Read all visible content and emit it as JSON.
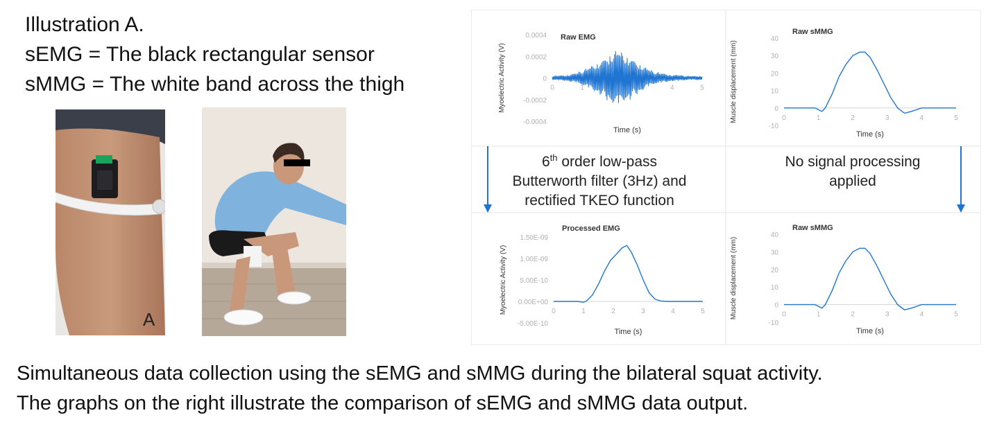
{
  "header": {
    "line1": "Illustration A.",
    "line2": "sEMG = The black rectangular sensor",
    "line3": "sMMG = The white band across the thigh"
  },
  "photos": {
    "left_label": "A",
    "left_description_icon": "thigh-sensor-photo",
    "right_description_icon": "person-squat-photo"
  },
  "flow": {
    "left_text_line1_prefix": "6",
    "left_text_line1_sup": "th",
    "left_text_line1_rest": " order low-pass",
    "left_text_line2": "Butterworth filter (3Hz) and",
    "left_text_line3": "rectified TKEO function",
    "right_text_line1": "No signal processing",
    "right_text_line2": "applied"
  },
  "chart_data": [
    {
      "type": "line",
      "title": "Raw EMG",
      "xlabel": "Time (s)",
      "ylabel": "Myoelectric Activity (V)",
      "xlim": [
        0,
        5
      ],
      "ylim": [
        -0.0004,
        0.0004
      ],
      "xticks": [
        "0",
        "1",
        "2",
        "3",
        "4",
        "5"
      ],
      "yticks": [
        "0.0004",
        "0.0002",
        "0",
        "-0.0002",
        "-0.0004"
      ],
      "series": [
        {
          "color": "#1f75d1",
          "x": [
            0,
            0.5,
            0.8,
            1.0,
            1.2,
            1.4,
            1.6,
            1.8,
            2.0,
            2.2,
            2.4,
            2.6,
            2.8,
            3.0,
            3.2,
            3.4,
            3.6,
            3.8,
            4.0,
            4.2,
            4.5,
            5.0
          ],
          "y": [
            2e-05,
            3e-05,
            5e-05,
            7e-05,
            0.0001,
            0.00013,
            0.00016,
            0.0002,
            0.00025,
            0.00027,
            0.00023,
            0.0002,
            0.00016,
            0.00012,
            9e-05,
            6e-05,
            5e-05,
            4e-05,
            3e-05,
            3e-05,
            2e-05,
            2e-05
          ]
        }
      ]
    },
    {
      "type": "line",
      "title": "Raw sMMG",
      "xlabel": "Time (s)",
      "ylabel": "Muscle displacement (mm)",
      "xlim": [
        0,
        5
      ],
      "ylim": [
        -10,
        40
      ],
      "xticks": [
        "0",
        "1",
        "2",
        "3",
        "4",
        "5"
      ],
      "yticks": [
        "40",
        "30",
        "20",
        "10",
        "0",
        "-10"
      ],
      "series": [
        {
          "color": "#1f75d1",
          "x": [
            0,
            0.5,
            0.9,
            1.0,
            1.1,
            1.2,
            1.4,
            1.6,
            1.8,
            2.0,
            2.2,
            2.35,
            2.5,
            2.7,
            2.9,
            3.1,
            3.3,
            3.5,
            3.7,
            4.0,
            4.5,
            5.0
          ],
          "y": [
            0,
            0,
            0,
            -1,
            -2,
            0,
            8,
            18,
            25,
            30,
            32,
            32,
            29,
            22,
            14,
            6,
            0,
            -3,
            -2,
            0,
            0,
            0
          ]
        }
      ]
    },
    {
      "type": "line",
      "title": "Processed EMG",
      "xlabel": "Time (s)",
      "ylabel": "Myoelectric Activity (V)",
      "xlim": [
        0,
        5
      ],
      "ylim": [
        -5e-10,
        1.5e-09
      ],
      "xticks": [
        "0",
        "1",
        "2",
        "3",
        "4",
        "5"
      ],
      "yticks": [
        "1.50E-09",
        "1.00E-09",
        "5.00E-10",
        "0.00E+00",
        "-5.00E-10"
      ],
      "series": [
        {
          "color": "#1f75d1",
          "x": [
            0,
            0.5,
            0.8,
            1.0,
            1.1,
            1.3,
            1.5,
            1.7,
            1.9,
            2.1,
            2.3,
            2.45,
            2.6,
            2.8,
            3.0,
            3.2,
            3.4,
            3.6,
            3.8,
            4.0,
            4.5,
            5.0
          ],
          "y": [
            0.0,
            0.0,
            0.0,
            -2e-11,
            1e-11,
            1.5e-10,
            4e-10,
            7e-10,
            9.5e-10,
            1.1e-09,
            1.25e-09,
            1.3e-09,
            1.15e-09,
            8.5e-10,
            5e-10,
            2e-10,
            5e-11,
            1e-11,
            0.0,
            0.0,
            0.0,
            0.0
          ]
        }
      ]
    },
    {
      "type": "line",
      "title": "Raw sMMG",
      "xlabel": "Time (s)",
      "ylabel": "Muscle displacement (mm)",
      "xlim": [
        0,
        5
      ],
      "ylim": [
        -10,
        40
      ],
      "xticks": [
        "0",
        "1",
        "2",
        "3",
        "4",
        "5"
      ],
      "yticks": [
        "40",
        "30",
        "20",
        "10",
        "0",
        "-10"
      ],
      "series": [
        {
          "color": "#1f75d1",
          "x": [
            0,
            0.5,
            0.9,
            1.0,
            1.1,
            1.2,
            1.4,
            1.6,
            1.8,
            2.0,
            2.2,
            2.35,
            2.5,
            2.7,
            2.9,
            3.1,
            3.3,
            3.5,
            3.7,
            4.0,
            4.5,
            5.0
          ],
          "y": [
            0,
            0,
            0,
            -1,
            -2,
            0,
            8,
            18,
            25,
            30,
            32,
            32,
            29,
            22,
            14,
            6,
            0,
            -3,
            -2,
            0,
            0,
            0
          ]
        }
      ]
    }
  ],
  "caption": {
    "line1": "Simultaneous data collection using the sEMG and sMMG during the bilateral squat activity.",
    "line2": "The graphs on the right illustrate the comparison of sEMG and sMMG data output."
  }
}
